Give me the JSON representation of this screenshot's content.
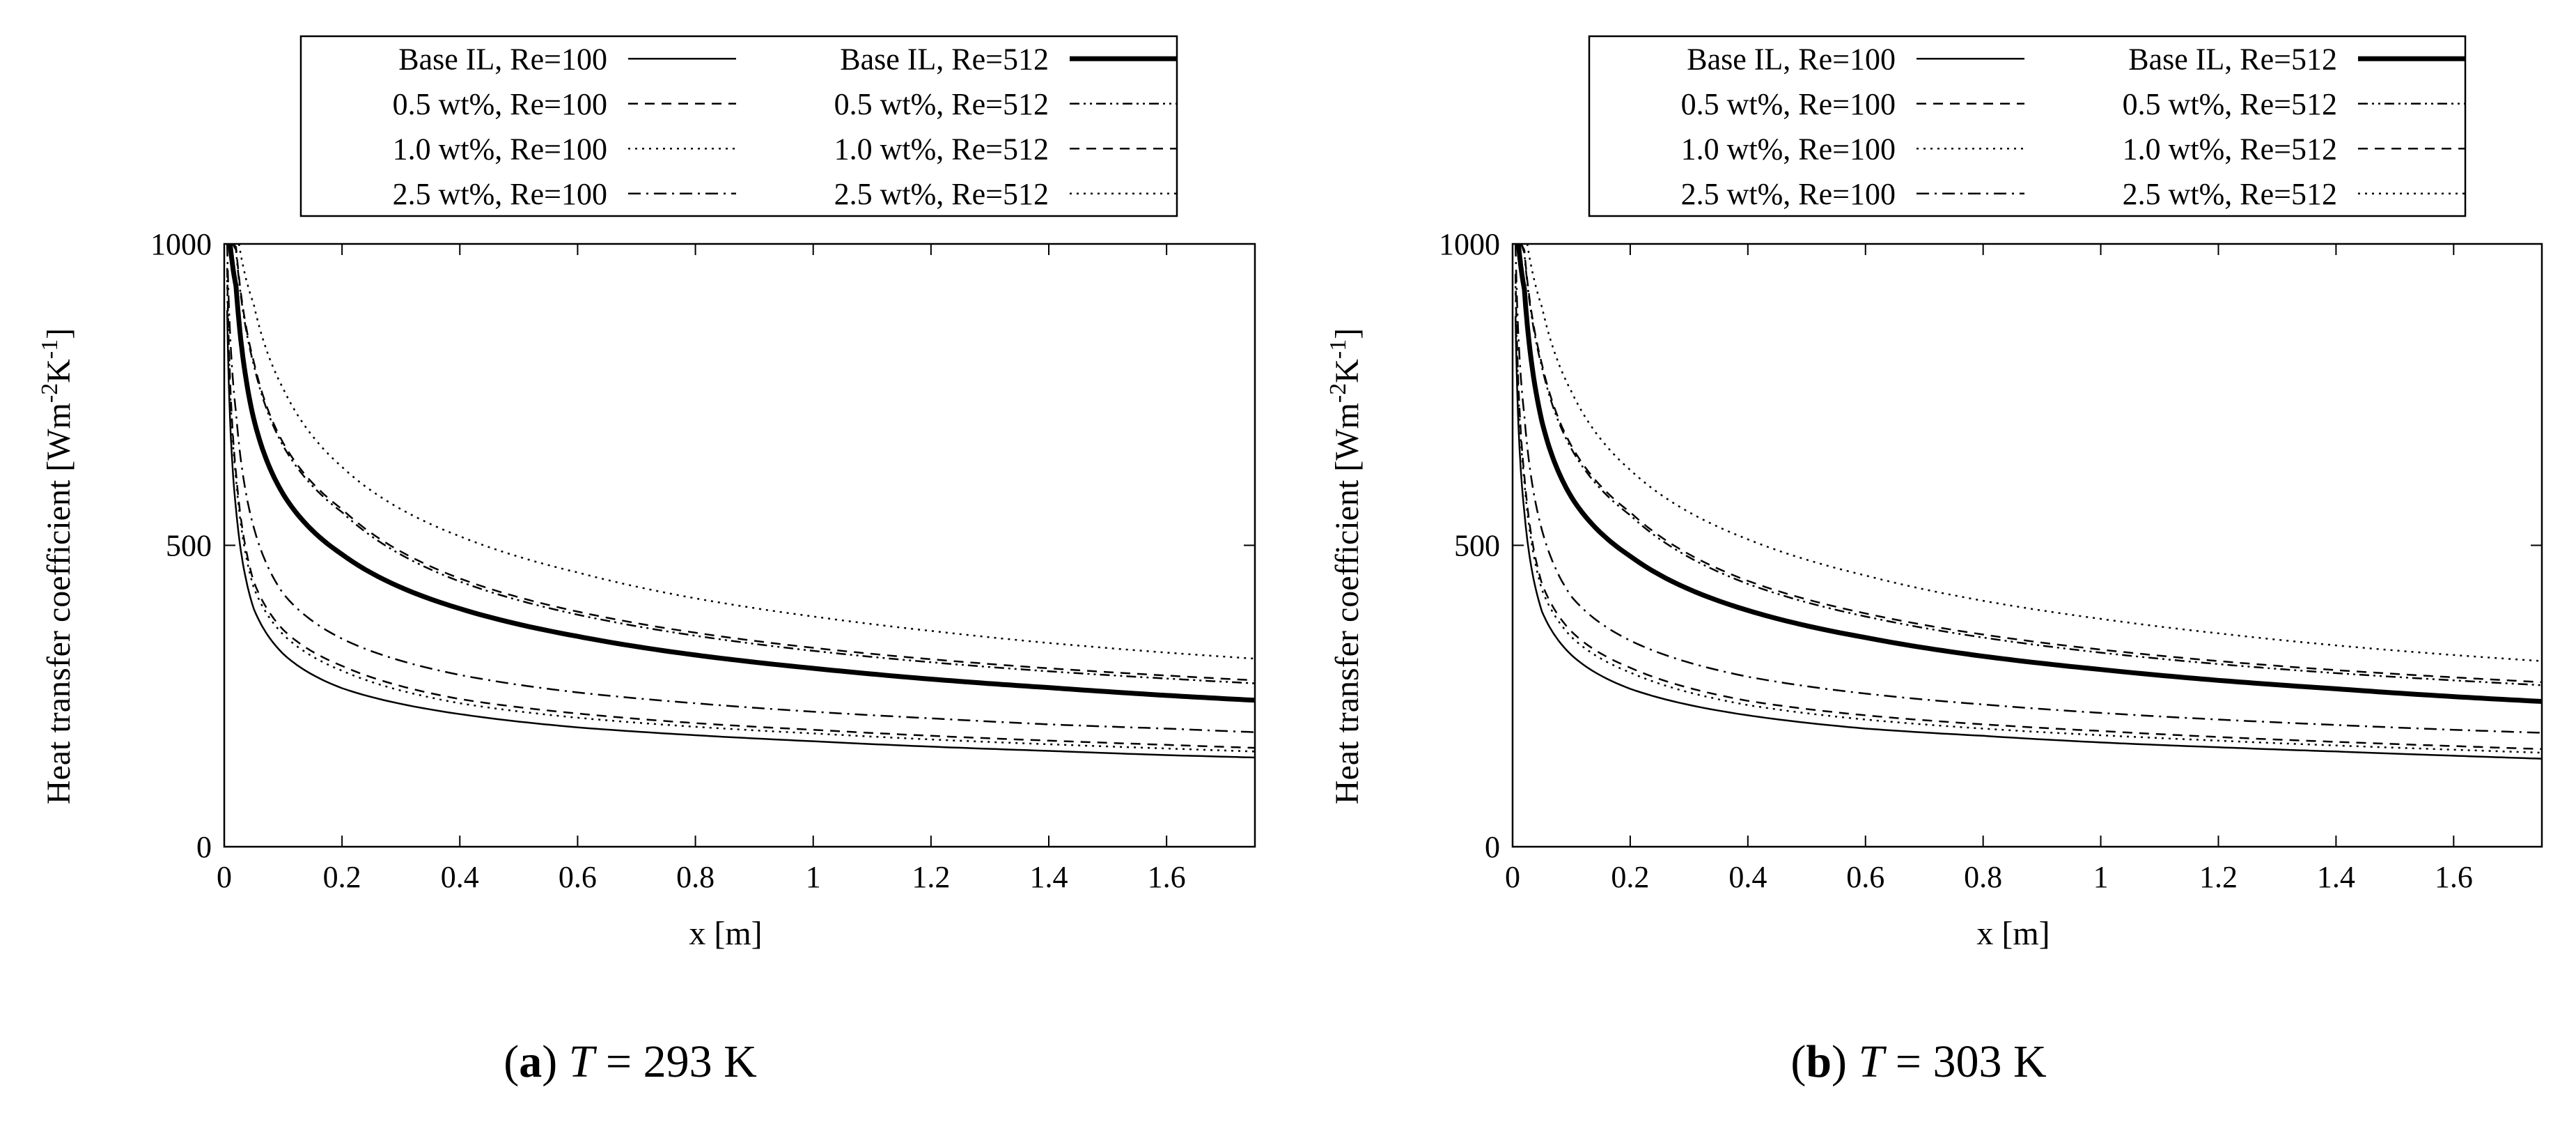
{
  "figure": {
    "panels": [
      {
        "caption_letter": "a",
        "caption_symbol": "T",
        "caption_rest": " = 293 K"
      },
      {
        "caption_letter": "b",
        "caption_symbol": "T",
        "caption_rest": " = 303 K"
      }
    ]
  },
  "colors": {
    "ink": "#000000",
    "background": "#ffffff"
  },
  "chart_data": [
    {
      "type": "line",
      "title": "(a) T = 293 K",
      "xlabel": "x [m]",
      "ylabel": "Heat transfer coefficient [Wm^-2K^-1]",
      "xlim": [
        0,
        1.75
      ],
      "ylim": [
        0,
        1000
      ],
      "xticks": [
        "0",
        "0.2",
        "0.4",
        "0.6",
        "0.8",
        "1",
        "1.2",
        "1.4",
        "1.6"
      ],
      "yticks": [
        "0",
        "500",
        "1000"
      ],
      "grid": false,
      "legend_position": "top",
      "series": [
        {
          "name": "Base IL, Re=100",
          "line_style": "solid",
          "line_weight": "thin",
          "x": [
            0.005,
            0.02,
            0.05,
            0.1,
            0.2,
            0.4,
            0.6,
            0.8,
            1.0,
            1.2,
            1.4,
            1.6,
            1.75
          ],
          "values": [
            890,
            560,
            395,
            320,
            263,
            220,
            198,
            185,
            175,
            166,
            159,
            152,
            148
          ]
        },
        {
          "name": "0.5 wt%, Re=100",
          "line_style": "dashed",
          "line_weight": "thin",
          "x": [
            0.005,
            0.02,
            0.05,
            0.1,
            0.2,
            0.4,
            0.6,
            0.8,
            1.0,
            1.2,
            1.4,
            1.6,
            1.75
          ],
          "values": [
            960,
            620,
            440,
            360,
            300,
            245,
            221,
            205,
            194,
            184,
            176,
            169,
            164
          ]
        },
        {
          "name": "1.0 wt%, Re=100",
          "line_style": "dotted",
          "line_weight": "thin",
          "x": [
            0.005,
            0.02,
            0.05,
            0.1,
            0.2,
            0.4,
            0.6,
            0.8,
            1.0,
            1.2,
            1.4,
            1.6,
            1.75
          ],
          "values": [
            940,
            610,
            430,
            352,
            292,
            238,
            214,
            199,
            188,
            178,
            170,
            163,
            158
          ]
        },
        {
          "name": "2.5 wt%, Re=100",
          "line_style": "dash-dot",
          "line_weight": "thin",
          "x": [
            0.005,
            0.02,
            0.05,
            0.1,
            0.2,
            0.4,
            0.6,
            0.8,
            1.0,
            1.2,
            1.4,
            1.6,
            1.75
          ],
          "values": [
            1000,
            720,
            530,
            420,
            345,
            285,
            256,
            238,
            224,
            213,
            203,
            196,
            190
          ]
        },
        {
          "name": "Base IL, Re=512",
          "line_style": "solid",
          "line_weight": "thick",
          "x": [
            0.01,
            0.02,
            0.05,
            0.1,
            0.2,
            0.4,
            0.6,
            0.8,
            1.0,
            1.2,
            1.4,
            1.6,
            1.75
          ],
          "values": [
            1000,
            930,
            710,
            585,
            485,
            395,
            349,
            318,
            296,
            278,
            264,
            251,
            243
          ]
        },
        {
          "name": "0.5 wt%, Re=512",
          "line_style": "dash-dot-dot",
          "line_weight": "thin",
          "x": [
            0.015,
            0.02,
            0.05,
            0.1,
            0.2,
            0.4,
            0.6,
            0.8,
            1.0,
            1.2,
            1.4,
            1.6,
            1.75
          ],
          "values": [
            1000,
            990,
            800,
            665,
            555,
            440,
            385,
            350,
            325,
            306,
            291,
            279,
            271
          ]
        },
        {
          "name": "1.0 wt%, Re=512",
          "line_style": "dashed",
          "line_weight": "thin",
          "x": [
            0.015,
            0.02,
            0.05,
            0.1,
            0.2,
            0.4,
            0.6,
            0.8,
            1.0,
            1.2,
            1.4,
            1.6,
            1.75
          ],
          "values": [
            1000,
            995,
            805,
            670,
            560,
            445,
            390,
            355,
            330,
            311,
            296,
            284,
            276
          ]
        },
        {
          "name": "2.5 wt%, Re=512",
          "line_style": "dotted",
          "line_weight": "thin",
          "x": [
            0.025,
            0.05,
            0.1,
            0.2,
            0.4,
            0.6,
            0.8,
            1.0,
            1.2,
            1.4,
            1.6,
            1.75
          ],
          "values": [
            1000,
            900,
            760,
            630,
            515,
            455,
            412,
            382,
            358,
            338,
            322,
            312
          ]
        }
      ]
    },
    {
      "type": "line",
      "title": "(b) T = 303 K",
      "xlabel": "x [m]",
      "ylabel": "Heat transfer coefficient [Wm^-2K^-1]",
      "xlim": [
        0,
        1.75
      ],
      "ylim": [
        0,
        1000
      ],
      "xticks": [
        "0",
        "0.2",
        "0.4",
        "0.6",
        "0.8",
        "1",
        "1.2",
        "1.4",
        "1.6"
      ],
      "yticks": [
        "0",
        "500",
        "1000"
      ],
      "grid": false,
      "legend_position": "top",
      "series": [
        {
          "name": "Base IL, Re=100",
          "line_style": "solid",
          "line_weight": "thin",
          "x": [
            0.005,
            0.02,
            0.05,
            0.1,
            0.2,
            0.4,
            0.6,
            0.8,
            1.0,
            1.2,
            1.4,
            1.6,
            1.75
          ],
          "values": [
            880,
            555,
            390,
            318,
            262,
            218,
            196,
            184,
            173,
            165,
            158,
            151,
            146
          ]
        },
        {
          "name": "0.5 wt%, Re=100",
          "line_style": "dashed",
          "line_weight": "thin",
          "x": [
            0.005,
            0.02,
            0.05,
            0.1,
            0.2,
            0.4,
            0.6,
            0.8,
            1.0,
            1.2,
            1.4,
            1.6,
            1.75
          ],
          "values": [
            950,
            615,
            436,
            357,
            297,
            242,
            218,
            203,
            192,
            182,
            174,
            167,
            162
          ]
        },
        {
          "name": "1.0 wt%, Re=100",
          "line_style": "dotted",
          "line_weight": "thin",
          "x": [
            0.005,
            0.02,
            0.05,
            0.1,
            0.2,
            0.4,
            0.6,
            0.8,
            1.0,
            1.2,
            1.4,
            1.6,
            1.75
          ],
          "values": [
            930,
            605,
            426,
            348,
            289,
            235,
            211,
            196,
            185,
            176,
            168,
            161,
            156
          ]
        },
        {
          "name": "2.5 wt%, Re=100",
          "line_style": "dash-dot",
          "line_weight": "thin",
          "x": [
            0.005,
            0.02,
            0.05,
            0.1,
            0.2,
            0.4,
            0.6,
            0.8,
            1.0,
            1.2,
            1.4,
            1.6,
            1.75
          ],
          "values": [
            1000,
            715,
            525,
            415,
            342,
            282,
            254,
            236,
            222,
            211,
            202,
            194,
            189
          ]
        },
        {
          "name": "Base IL, Re=512",
          "line_style": "solid",
          "line_weight": "thick",
          "x": [
            0.01,
            0.02,
            0.05,
            0.1,
            0.2,
            0.4,
            0.6,
            0.8,
            1.0,
            1.2,
            1.4,
            1.6,
            1.75
          ],
          "values": [
            1000,
            925,
            705,
            580,
            482,
            392,
            347,
            316,
            294,
            276,
            262,
            249,
            241
          ]
        },
        {
          "name": "0.5 wt%, Re=512",
          "line_style": "dash-dot-dot",
          "line_weight": "thin",
          "x": [
            0.015,
            0.02,
            0.05,
            0.1,
            0.2,
            0.4,
            0.6,
            0.8,
            1.0,
            1.2,
            1.4,
            1.6,
            1.75
          ],
          "values": [
            1000,
            985,
            795,
            660,
            550,
            436,
            382,
            347,
            322,
            303,
            288,
            276,
            268
          ]
        },
        {
          "name": "1.0 wt%, Re=512",
          "line_style": "dashed",
          "line_weight": "thin",
          "x": [
            0.015,
            0.02,
            0.05,
            0.1,
            0.2,
            0.4,
            0.6,
            0.8,
            1.0,
            1.2,
            1.4,
            1.6,
            1.75
          ],
          "values": [
            1000,
            990,
            800,
            665,
            555,
            441,
            387,
            352,
            327,
            308,
            293,
            281,
            273
          ]
        },
        {
          "name": "2.5 wt%, Re=512",
          "line_style": "dotted",
          "line_weight": "thin",
          "x": [
            0.025,
            0.05,
            0.1,
            0.2,
            0.4,
            0.6,
            0.8,
            1.0,
            1.2,
            1.4,
            1.6,
            1.75
          ],
          "values": [
            1000,
            895,
            755,
            625,
            510,
            450,
            408,
            378,
            354,
            334,
            318,
            308
          ]
        }
      ]
    }
  ]
}
